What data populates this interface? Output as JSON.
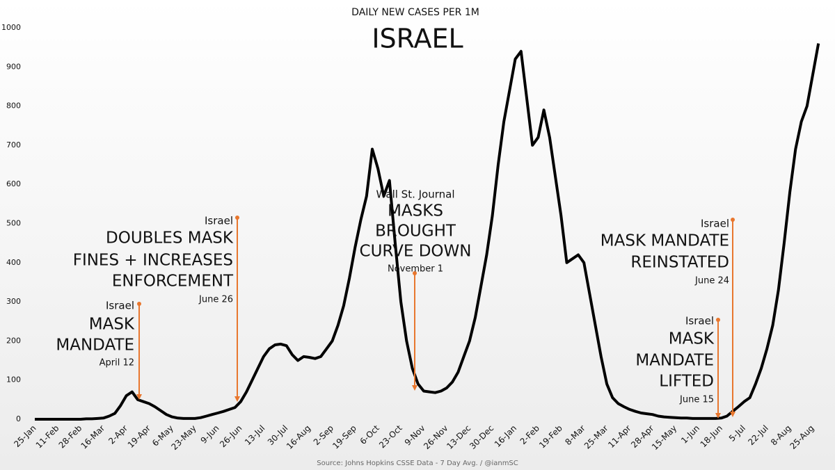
{
  "chart_data": {
    "type": "line",
    "supertitle": "DAILY NEW CASES PER 1M",
    "title": "ISRAEL",
    "source": "Source: Johns Hopkins CSSE Data - 7 Day Avg. / @ianmSC",
    "categories": [
      "25-Jan",
      null,
      null,
      null,
      "11-Feb",
      null,
      null,
      null,
      "28-Feb",
      null,
      null,
      null,
      "16-Mar",
      null,
      null,
      null,
      "2-Apr",
      null,
      null,
      null,
      "19-Apr",
      null,
      null,
      null,
      "6-May",
      null,
      null,
      null,
      "23-May",
      null,
      null,
      null,
      "9-Jun",
      null,
      null,
      null,
      "26-Jun",
      null,
      null,
      null,
      "13-Jul",
      null,
      null,
      null,
      "30-Jul",
      null,
      null,
      null,
      "16-Aug",
      null,
      null,
      null,
      "2-Sep",
      null,
      null,
      null,
      "19-Sep",
      null,
      null,
      null,
      "6-Oct",
      null,
      null,
      null,
      "23-Oct",
      null,
      null,
      null,
      "9-Nov",
      null,
      null,
      null,
      "26-Nov",
      null,
      null,
      null,
      "13-Dec",
      null,
      null,
      null,
      "30-Dec",
      null,
      null,
      null,
      "16-Jan",
      null,
      null,
      null,
      "2-Feb",
      null,
      null,
      null,
      "19-Feb",
      null,
      null,
      null,
      "8-Mar",
      null,
      null,
      null,
      "25-Mar",
      null,
      null,
      null,
      "11-Apr",
      null,
      null,
      null,
      "28-Apr",
      null,
      null,
      null,
      "15-May",
      null,
      null,
      null,
      "1-Jun",
      null,
      null,
      null,
      "18-Jun",
      null,
      null,
      null,
      "5-Jul",
      null,
      null,
      null,
      "22-Jul",
      null,
      null,
      null,
      "8-Aug",
      null,
      null,
      null,
      "25-Aug",
      null
    ],
    "values": [
      0,
      0,
      0,
      0,
      0,
      0,
      0,
      0,
      0,
      1,
      1,
      2,
      3,
      8,
      15,
      35,
      60,
      70,
      50,
      45,
      40,
      32,
      22,
      12,
      6,
      3,
      2,
      2,
      2,
      4,
      8,
      12,
      16,
      20,
      25,
      30,
      45,
      70,
      100,
      130,
      160,
      180,
      190,
      192,
      188,
      165,
      150,
      160,
      158,
      155,
      160,
      180,
      200,
      240,
      290,
      360,
      440,
      510,
      570,
      690,
      640,
      570,
      610,
      450,
      300,
      200,
      130,
      90,
      72,
      70,
      68,
      72,
      80,
      95,
      120,
      160,
      200,
      260,
      340,
      420,
      520,
      650,
      760,
      840,
      920,
      940,
      820,
      700,
      720,
      790,
      720,
      620,
      520,
      400,
      410,
      420,
      400,
      320,
      240,
      160,
      90,
      55,
      40,
      32,
      25,
      20,
      16,
      14,
      12,
      8,
      6,
      5,
      4,
      3,
      3,
      2,
      2,
      2,
      2,
      2,
      3,
      8,
      20,
      32,
      45,
      55,
      90,
      130,
      180,
      240,
      330,
      450,
      580,
      690,
      760,
      800,
      880,
      960
    ],
    "color": "#000000",
    "ylim": [
      0,
      1000
    ],
    "yticks": [
      0,
      100,
      200,
      300,
      400,
      500,
      600,
      700,
      800,
      900,
      1000
    ],
    "annotations": [
      {
        "lines": [
          "Israel",
          "MASK",
          "MANDATE",
          "April 12"
        ]
      },
      {
        "lines": [
          "Israel",
          "DOUBLES MASK",
          "FINES + INCREASES",
          "ENFORCEMENT",
          "June 26"
        ]
      },
      {
        "lines": [
          "Wall St. Journal",
          "MASKS",
          "BROUGHT",
          "CURVE DOWN",
          "November 1"
        ]
      },
      {
        "lines": [
          "Israel",
          "MASK MANDATE",
          "REINSTATED",
          "June 24"
        ]
      },
      {
        "lines": [
          "Israel",
          "MASK",
          "MANDATE",
          "LIFTED",
          "June 15"
        ]
      }
    ],
    "annotation_color": "#e8772e"
  }
}
